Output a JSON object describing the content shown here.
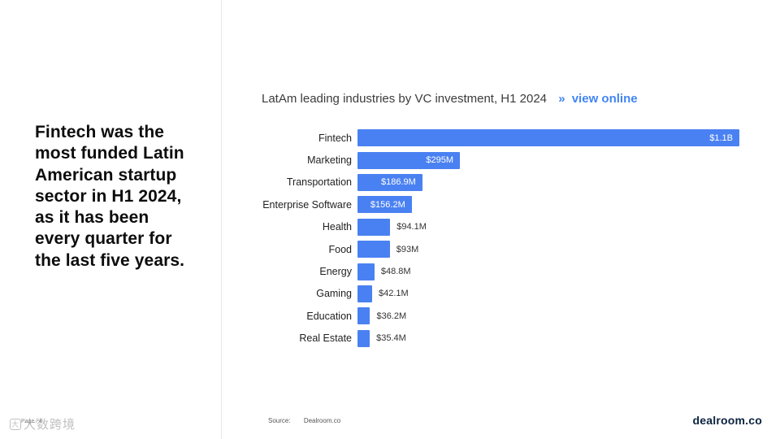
{
  "sidebar": {
    "headline": "Fintech was the most funded Latin American startup sector in H1 2024, as it has been every quarter for the last five years."
  },
  "header": {
    "title": "LatAm leading industries by VC investment, H1 2024",
    "link_arrows": "»",
    "link_label": "view online"
  },
  "chart_data": {
    "type": "bar",
    "orientation": "horizontal",
    "title": "LatAm leading industries by VC investment, H1 2024",
    "categories": [
      "Fintech",
      "Marketing",
      "Transportation",
      "Enterprise Software",
      "Health",
      "Food",
      "Energy",
      "Gaming",
      "Education",
      "Real Estate"
    ],
    "values": [
      1100,
      295,
      186.9,
      156.2,
      94.1,
      93,
      48.8,
      42.1,
      36.2,
      35.4
    ],
    "value_labels": [
      "$1.1B",
      "$295M",
      "$186.9M",
      "$156.2M",
      "$94.1M",
      "$93M",
      "$48.8M",
      "$42.1M",
      "$36.2M",
      "$35.4M"
    ],
    "unit": "USD millions",
    "xlim": [
      0,
      1100
    ],
    "inside_label_threshold": 150,
    "bar_color": "#4a81f2",
    "inside_label_color": "#ffffff",
    "outside_label_color": "#333333",
    "grid": false,
    "legend": "none"
  },
  "footer": {
    "source_label": "Source:",
    "source_value": "Dealroom.co",
    "page_label": "Page / 4",
    "watermark_icon": "大",
    "watermark": "大数跨境",
    "logo": "dealroom.co"
  },
  "colors": {
    "accent_blue": "#4285f4",
    "bar_blue": "#4a81f2",
    "logo_navy": "#0b2240"
  }
}
